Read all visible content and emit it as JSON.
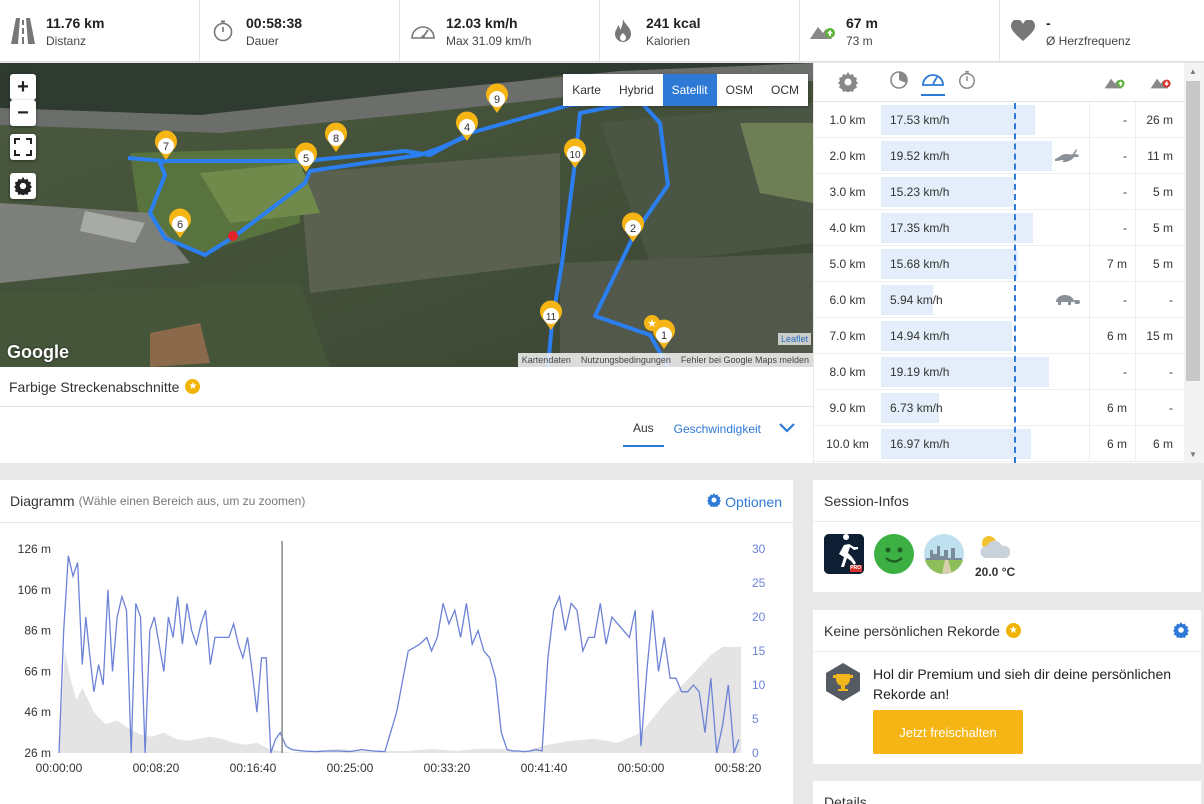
{
  "stats": [
    {
      "icon": "road-icon",
      "value": "11.76 km",
      "label": "Distanz"
    },
    {
      "icon": "stopwatch-icon",
      "value": "00:58:38",
      "label": "Dauer"
    },
    {
      "icon": "speedometer-icon",
      "value": "12.03 km/h",
      "label": "Max 31.09 km/h"
    },
    {
      "icon": "flame-icon",
      "value": "241 kcal",
      "label": "Kalorien"
    },
    {
      "icon": "elevation-up-icon",
      "value": "67 m",
      "label": "73 m"
    },
    {
      "icon": "heart-icon",
      "value": "-",
      "label": "Ø Herzfrequenz"
    }
  ],
  "map": {
    "zoom_in": "+",
    "zoom_out": "−",
    "tabs": [
      "Karte",
      "Hybrid",
      "Satellit",
      "OSM",
      "OCM"
    ],
    "active_tab": "Satellit",
    "google": "Google",
    "leaflet": "Leaflet",
    "attribution": [
      "Kartendaten",
      "Nutzungsbedingungen",
      "Fehler bei Google Maps melden"
    ],
    "markers": [
      "1",
      "2",
      "4",
      "5",
      "6",
      "7",
      "8",
      "9",
      "10",
      "11"
    ]
  },
  "segments": {
    "title": "Farbige Streckenabschnitte",
    "tab_off": "Aus",
    "tab_speed": "Geschwindigkeit"
  },
  "splits": {
    "rows": [
      {
        "km": "1.0 km",
        "speed": "17.53 km/h",
        "frac": 0.74,
        "up": "-",
        "down": "26 m",
        "animal": ""
      },
      {
        "km": "2.0 km",
        "speed": "19.52 km/h",
        "frac": 0.82,
        "up": "-",
        "down": "11 m",
        "animal": "hare"
      },
      {
        "km": "3.0 km",
        "speed": "15.23 km/h",
        "frac": 0.64,
        "up": "-",
        "down": "5 m",
        "animal": ""
      },
      {
        "km": "4.0 km",
        "speed": "17.35 km/h",
        "frac": 0.73,
        "up": "-",
        "down": "5 m",
        "animal": ""
      },
      {
        "km": "5.0 km",
        "speed": "15.68 km/h",
        "frac": 0.66,
        "up": "7 m",
        "down": "5 m",
        "animal": ""
      },
      {
        "km": "6.0 km",
        "speed": "5.94 km/h",
        "frac": 0.25,
        "up": "-",
        "down": "-",
        "animal": "turtle"
      },
      {
        "km": "7.0 km",
        "speed": "14.94 km/h",
        "frac": 0.63,
        "up": "6 m",
        "down": "15 m",
        "animal": ""
      },
      {
        "km": "8.0 km",
        "speed": "19.19 km/h",
        "frac": 0.81,
        "up": "-",
        "down": "-",
        "animal": ""
      },
      {
        "km": "9.0 km",
        "speed": "6.73 km/h",
        "frac": 0.28,
        "up": "6 m",
        "down": "-",
        "animal": ""
      },
      {
        "km": "10.0 km",
        "speed": "16.97 km/h",
        "frac": 0.72,
        "up": "6 m",
        "down": "6 m",
        "animal": ""
      }
    ]
  },
  "diagram": {
    "title": "Diagramm",
    "hint": "(Wähle einen Bereich aus, um zu zoomen)",
    "options": "Optionen"
  },
  "chart_data": {
    "type": "line",
    "x_ticks": [
      "00:00:00",
      "00:08:20",
      "00:16:40",
      "00:25:00",
      "00:33:20",
      "00:41:40",
      "00:50:00",
      "00:58:20"
    ],
    "y_left_ticks": [
      "126 m",
      "106 m",
      "86 m",
      "66 m",
      "46 m",
      "26 m"
    ],
    "y_left_range": [
      26,
      126
    ],
    "y_right_ticks": [
      "30",
      "25",
      "20",
      "15",
      "10",
      "5",
      "0"
    ],
    "y_right_range": [
      0,
      30
    ],
    "cursor_time": "00:19:10",
    "series": [
      {
        "kind": "elevation-area",
        "t_min": [
          0,
          0.5,
          1,
          1.5,
          2,
          3,
          4,
          5,
          6,
          7,
          8,
          9,
          10,
          11,
          12,
          13,
          14,
          15,
          16,
          17,
          18,
          19,
          20,
          21,
          22,
          24,
          26,
          28,
          30,
          32,
          34,
          36,
          38,
          40,
          42,
          44,
          46,
          48,
          50,
          52,
          54,
          56,
          57,
          58,
          58.6
        ],
        "values": [
          26,
          76,
          62,
          52,
          58,
          46,
          40,
          42,
          38,
          35,
          34,
          36,
          33,
          32,
          33,
          34,
          33,
          31,
          30,
          31,
          28,
          27,
          26,
          27,
          27,
          28,
          27,
          27,
          27,
          28,
          27,
          28,
          28,
          27,
          30,
          32,
          33,
          31,
          36,
          50,
          62,
          74,
          78,
          78,
          78
        ]
      },
      {
        "kind": "speed-line",
        "t_min": [
          0,
          0.4,
          0.8,
          1.2,
          1.6,
          2,
          2.3,
          2.6,
          3,
          3.4,
          3.8,
          4.2,
          4.6,
          5,
          5.4,
          5.8,
          6.2,
          6.6,
          7,
          7.4,
          7.8,
          8.2,
          8.6,
          9,
          9.4,
          9.8,
          10.2,
          10.6,
          11,
          11.4,
          11.8,
          12.2,
          12.6,
          13,
          13.4,
          13.8,
          14.2,
          14.6,
          15,
          15.4,
          15.8,
          16.2,
          16.6,
          17,
          17.4,
          17.8,
          18.2,
          18.6,
          19,
          19.5,
          20,
          21,
          22,
          23,
          24,
          25,
          26,
          27,
          28,
          29,
          30,
          31,
          31.6,
          32,
          32.5,
          33,
          33.5,
          34,
          34.5,
          35,
          35.5,
          36,
          36.5,
          37,
          37.5,
          38,
          38.5,
          39,
          39.5,
          40,
          40.5,
          41,
          41.5,
          42,
          42.5,
          43,
          43.5,
          44,
          44.5,
          45,
          45.5,
          46,
          46.5,
          47,
          47.5,
          48,
          48.5,
          49,
          49.5,
          50,
          50.5,
          51,
          51.5,
          52,
          52.5,
          53,
          53.5,
          54,
          54.5,
          55,
          55.5,
          56,
          56.5,
          57,
          57.5,
          58,
          58.4
        ],
        "values": [
          0,
          18,
          29,
          26,
          28,
          13,
          20,
          15,
          9,
          13,
          10,
          24,
          12,
          20,
          23,
          21,
          0,
          22,
          20,
          0,
          18,
          20,
          16,
          12,
          20,
          17,
          23,
          16,
          22,
          18,
          16,
          19,
          21,
          13,
          17,
          17,
          17,
          17,
          19,
          16,
          14,
          17,
          12,
          6,
          14,
          14,
          0,
          2,
          3,
          1,
          0.5,
          0.3,
          0.2,
          0.3,
          0.3,
          0.2,
          0.5,
          0.3,
          0.2,
          6,
          15,
          16,
          17,
          15,
          17,
          22,
          19,
          21,
          17,
          22,
          16,
          18,
          15,
          14,
          11,
          3,
          0.5,
          0.3,
          0.3,
          0.2,
          0.3,
          0.5,
          0.3,
          14,
          21,
          23,
          18,
          22,
          21,
          15,
          17,
          17,
          22,
          16,
          20,
          19,
          18,
          17,
          21,
          1,
          12,
          21,
          12,
          17,
          11,
          11,
          9,
          9,
          10,
          9,
          3,
          11,
          0,
          4,
          10,
          0,
          2,
          0.5,
          12,
          15,
          0,
          0
        ]
      }
    ]
  },
  "session": {
    "title": "Session-Infos",
    "temp": "20.0 °C",
    "pro_badge": "PRO"
  },
  "records": {
    "title": "Keine persönlichen Rekorde",
    "text": "Hol dir Premium und sieh dir deine persönlichen Rekorde an!",
    "button": "Jetzt freischalten"
  },
  "details": {
    "title": "Details"
  }
}
